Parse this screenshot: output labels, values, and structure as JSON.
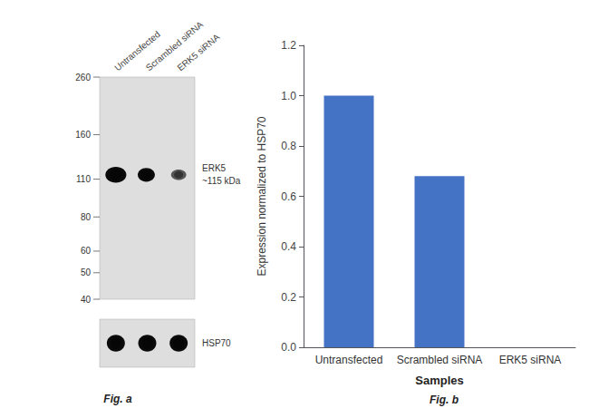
{
  "chart_data": [
    {
      "type": "blot",
      "title": "Fig. a",
      "categories": [
        "Untransfected",
        "Scrambled siRNA",
        "ERK5 siRNA"
      ],
      "ylim": [
        40,
        260
      ],
      "yticks": [
        260,
        160,
        110,
        80,
        60,
        50,
        40
      ],
      "log": "y",
      "annotations": [
        "ERK5\n~115 kDa",
        "HSP70"
      ],
      "color": "#dedede"
    },
    {
      "type": "bar",
      "title": "Fig. b",
      "categories": [
        "Untransfected",
        "Scrambled siRNA",
        "ERK5 siRNA"
      ],
      "values": [
        1.0,
        0.68,
        0.0
      ],
      "color": "#4472C4",
      "xlabel": "Samples",
      "ylabel": "Expression normalized to HSP70",
      "ylim": [
        0,
        1.2
      ],
      "yticks": [
        {
          "value": 0,
          "label": "0.0"
        },
        0.2,
        0.4,
        0.6,
        0.8,
        {
          "value": 1.0,
          "label": "1.0"
        },
        1.2
      ],
      "grid": false
    }
  ]
}
